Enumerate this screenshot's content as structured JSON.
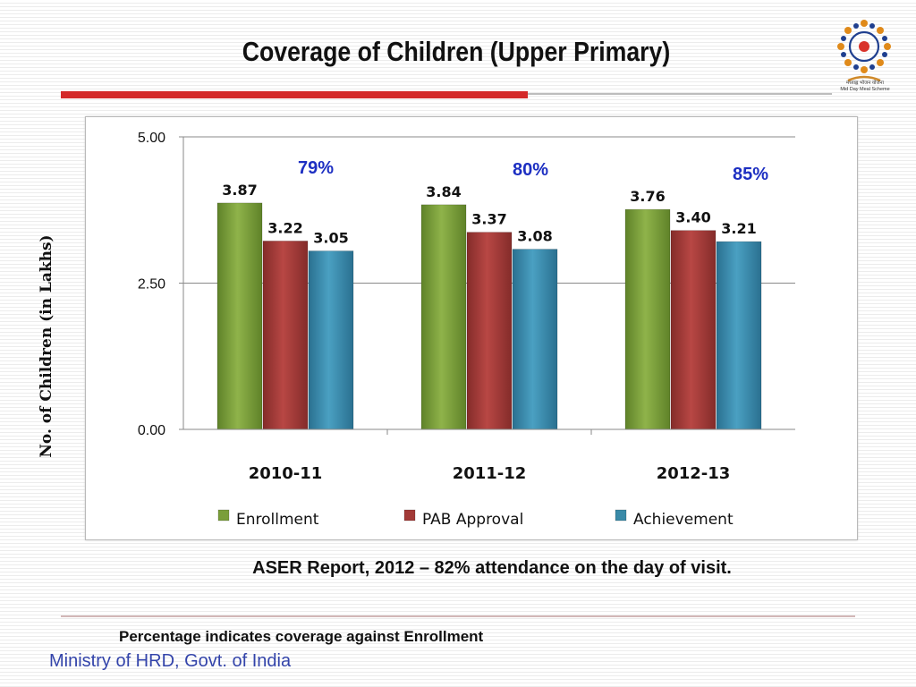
{
  "slide": {
    "title": "Coverage of Children  (Upper Primary)",
    "source_note": "ASER Report, 2012 – 82% attendance on the day of visit.",
    "footnote": "Percentage indicates coverage against  Enrollment",
    "ministry": "Ministry of HRD, Govt. of India",
    "logo_caption": "मध्याह्न भोजन योजना",
    "logo_subcaption": "Mid Day Meal Scheme"
  },
  "colors": {
    "enrollment": "#7a9e3a",
    "pab_approval": "#a23a37",
    "achievement": "#3a8aa8",
    "percentage_text": "#1d2fc2",
    "title_rule": "#d42a2a"
  },
  "chart_data": {
    "type": "bar",
    "categories": [
      "2010-11",
      "2011-12",
      "2012-13"
    ],
    "series": [
      {
        "name": "Enrollment",
        "values": [
          3.87,
          3.84,
          3.76
        ],
        "labels": [
          "3.87",
          "3.84",
          "3.76"
        ]
      },
      {
        "name": "PAB Approval",
        "values": [
          3.22,
          3.37,
          3.4
        ],
        "labels": [
          "3.22",
          "3.37",
          "3.40"
        ]
      },
      {
        "name": "Achievement",
        "values": [
          3.05,
          3.08,
          3.21
        ],
        "labels": [
          "3.05",
          "3.08",
          "3.21"
        ]
      }
    ],
    "percentages": [
      "79%",
      "80%",
      "85%"
    ],
    "ylabel": "No. of Children (in Lakhs)",
    "xlabel": "",
    "ylim": [
      0,
      5
    ],
    "yticks": [
      "0.00",
      "2.50",
      "5.00"
    ],
    "legend_position": "bottom",
    "grid": true
  }
}
